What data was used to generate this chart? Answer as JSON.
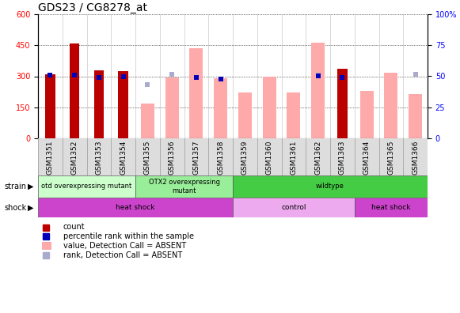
{
  "title": "GDS23 / CG8278_at",
  "samples": [
    "GSM1351",
    "GSM1352",
    "GSM1353",
    "GSM1354",
    "GSM1355",
    "GSM1356",
    "GSM1357",
    "GSM1358",
    "GSM1359",
    "GSM1360",
    "GSM1361",
    "GSM1362",
    "GSM1363",
    "GSM1364",
    "GSM1365",
    "GSM1366"
  ],
  "count_values": [
    310,
    460,
    330,
    325,
    null,
    null,
    null,
    null,
    null,
    null,
    null,
    null,
    335,
    null,
    null,
    null
  ],
  "count_present": [
    1,
    1,
    1,
    1,
    0,
    0,
    0,
    0,
    0,
    0,
    0,
    0,
    1,
    0,
    0,
    0
  ],
  "absent_values": [
    null,
    null,
    null,
    null,
    170,
    295,
    437,
    290,
    220,
    298,
    220,
    462,
    null,
    230,
    318,
    215
  ],
  "percentile_values_left": [
    305,
    305,
    295,
    297,
    null,
    null,
    295,
    285,
    null,
    null,
    null,
    302,
    296,
    null,
    null,
    null
  ],
  "rank_absent_left": [
    null,
    null,
    null,
    null,
    260,
    308,
    null,
    null,
    null,
    null,
    null,
    305,
    null,
    null,
    null,
    310
  ],
  "ylim_left": [
    0,
    600
  ],
  "ylim_right": [
    0,
    100
  ],
  "yticks_left": [
    0,
    150,
    300,
    450,
    600
  ],
  "yticks_right": [
    0,
    25,
    50,
    75,
    100
  ],
  "ytick_right_labels": [
    "0",
    "25",
    "50",
    "75",
    "100%"
  ],
  "strain_groups": [
    {
      "label": "otd overexpressing mutant",
      "start": 0,
      "end": 4,
      "color": "#CCFFCC"
    },
    {
      "label": "OTX2 overexpressing\nmutant",
      "start": 4,
      "end": 8,
      "color": "#99EE99"
    },
    {
      "label": "wildtype",
      "start": 8,
      "end": 16,
      "color": "#44CC44"
    }
  ],
  "shock_groups": [
    {
      "label": "heat shock",
      "start": 0,
      "end": 8,
      "color": "#CC44CC"
    },
    {
      "label": "control",
      "start": 8,
      "end": 13,
      "color": "#EEAAEE"
    },
    {
      "label": "heat shock",
      "start": 13,
      "end": 16,
      "color": "#CC44CC"
    }
  ],
  "bar_width": 0.55,
  "count_bar_width": 0.4,
  "count_color": "#BB0000",
  "absent_bar_color": "#FFAAAA",
  "percentile_color": "#0000BB",
  "rank_absent_color": "#AAAACC",
  "bg_color": "#FFFFFF",
  "title_fontsize": 10,
  "tick_fontsize": 6.5,
  "legend_fontsize": 7
}
